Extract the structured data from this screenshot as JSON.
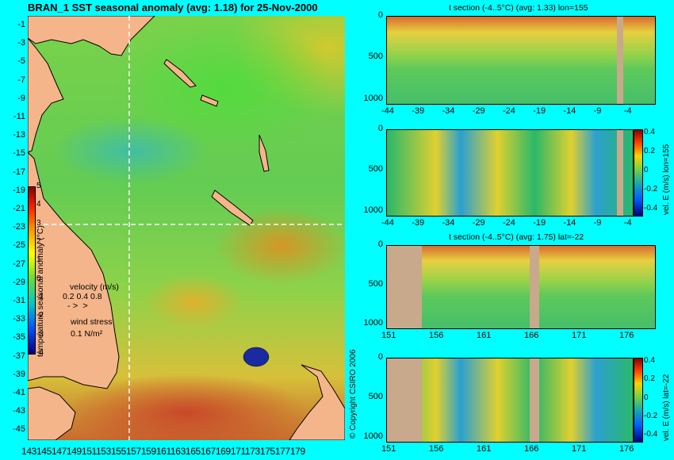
{
  "title": "BRAN_1 SST seasonal anomaly (avg: 1.18) for 25-Nov-2000",
  "map": {
    "lat_ticks": [
      "-1",
      "-3",
      "-5",
      "-7",
      "-9",
      "-11",
      "-13",
      "-15",
      "-17",
      "-19",
      "-21",
      "-23",
      "-25",
      "-27",
      "-29",
      "-31",
      "-33",
      "-35",
      "-37",
      "-39",
      "-41",
      "-43",
      "-45"
    ],
    "lon_ticks_text": "143145147149151153155157159161163165167169171173175177179",
    "colorbar": {
      "label": "temperature seasonal anomaly (°C)",
      "ticks": [
        "5",
        "4",
        "3",
        "2",
        "1",
        "0",
        "-1",
        "-2",
        "-3",
        "-4"
      ]
    },
    "velocity_label": "velocity (m/s)",
    "velocity_scale": "0.2 0.4 0.8",
    "wind_label": "wind stress",
    "wind_scale": "0.1 N/m²",
    "colors": {
      "land": "#F5B58A",
      "crosshair": "#FFFFFF",
      "background": "#00FFFF"
    }
  },
  "copyright": "© Copyright CSIRO 2006",
  "panels": [
    {
      "title": "t section (-4..5°C) (avg: 1.33) lon=155",
      "y_ticks": [
        "0",
        "500",
        "1000"
      ],
      "x_ticks": [
        "-44",
        "-39",
        "-34",
        "-29",
        "-24",
        "-19",
        "-14",
        "-9",
        "-4"
      ]
    },
    {
      "title": "",
      "y_ticks": [
        "0",
        "500",
        "1000"
      ],
      "x_ticks": [
        "-44",
        "-39",
        "-34",
        "-29",
        "-24",
        "-19",
        "-14",
        "-9",
        "-4"
      ],
      "colorbar_label": "vel. E (m/s) lon=155",
      "colorbar_ticks": [
        "0.4",
        "0.2",
        "0",
        "-0.2",
        "-0.4"
      ]
    },
    {
      "title": "t section (-4..5°C) (avg: 1.75) lat=-22",
      "y_ticks": [
        "0",
        "500",
        "1000"
      ],
      "x_ticks": [
        "151",
        "156",
        "161",
        "166",
        "171",
        "176"
      ]
    },
    {
      "title": "",
      "y_ticks": [
        "0",
        "500",
        "1000"
      ],
      "x_ticks": [
        "151",
        "156",
        "161",
        "166",
        "171",
        "176"
      ],
      "colorbar_label": "vel. E (m/s) lat=-22",
      "colorbar_ticks": [
        "0.4",
        "0.2",
        "0",
        "-0.2",
        "-0.4"
      ]
    }
  ]
}
